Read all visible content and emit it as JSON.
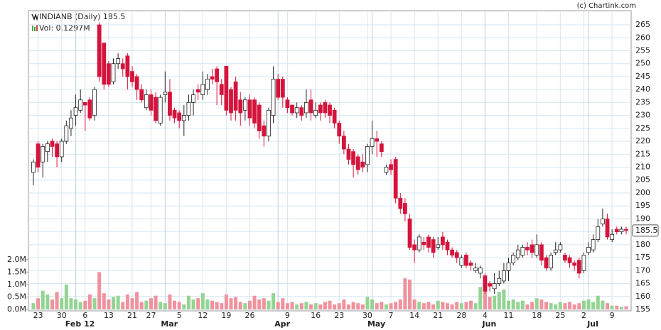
{
  "chart_data": {
    "type": "candlestick",
    "title": "INDIANB (Daily) 185.5",
    "volume_label": "Vol: 0.1297M",
    "watermark": "(c) Chartink.com",
    "up_color": "#ffffff",
    "down_color": "#d4143c",
    "volume_up_color": "#93d493",
    "volume_down_color": "#f0929e",
    "grid": true,
    "categories": [
      null,
      "23",
      null,
      null,
      null,
      null,
      "30",
      null,
      null,
      null,
      null,
      "6",
      null,
      null,
      null,
      null,
      "13",
      null,
      null,
      null,
      null,
      "21",
      null,
      null,
      null,
      "27",
      null,
      null,
      null,
      null,
      null,
      "5",
      null,
      null,
      null,
      null,
      "12",
      null,
      null,
      null,
      null,
      "19",
      null,
      null,
      null,
      null,
      "26",
      null,
      null,
      null,
      null,
      null,
      null,
      null,
      "9",
      null,
      null,
      null,
      null,
      null,
      "16",
      null,
      null,
      null,
      null,
      "23",
      null,
      null,
      null,
      null,
      null,
      "30",
      null,
      null,
      null,
      null,
      "7",
      null,
      null,
      null,
      null,
      "14",
      null,
      null,
      null,
      null,
      "21",
      null,
      null,
      null,
      null,
      "28",
      null,
      null,
      null,
      null,
      "4",
      null,
      null,
      null,
      null,
      "11",
      null,
      null,
      null,
      null,
      null,
      "18",
      null,
      null,
      null,
      null,
      "25",
      null,
      null,
      null,
      null,
      "2",
      null,
      null,
      null,
      null,
      null,
      "9",
      null,
      null,
      null
    ],
    "months": [
      null,
      null,
      null,
      null,
      null,
      null,
      null,
      null,
      null,
      "Feb 12",
      null,
      null,
      null,
      null,
      null,
      null,
      null,
      null,
      null,
      null,
      null,
      null,
      null,
      null,
      null,
      null,
      null,
      null,
      "Mar",
      null,
      null,
      null,
      null,
      null,
      null,
      null,
      null,
      null,
      null,
      null,
      null,
      null,
      null,
      null,
      null,
      null,
      null,
      null,
      null,
      null,
      null,
      null,
      "Apr",
      null,
      null,
      null,
      null,
      null,
      null,
      null,
      null,
      null,
      null,
      null,
      null,
      null,
      null,
      null,
      null,
      null,
      null,
      null,
      "May",
      null,
      null,
      null,
      null,
      null,
      null,
      null,
      null,
      null,
      null,
      null,
      null,
      null,
      null,
      null,
      null,
      null,
      null,
      null,
      null,
      null,
      null,
      null,
      "Jun",
      null,
      null,
      null,
      null,
      null,
      null,
      null,
      null,
      null,
      null,
      null,
      null,
      null,
      null,
      null,
      null,
      null,
      null,
      null,
      null,
      null,
      "Jul",
      null,
      null,
      null,
      null,
      null,
      null,
      null,
      null
    ],
    "open": [
      208,
      219,
      212,
      216,
      220,
      219,
      214,
      220,
      225,
      230,
      232,
      235,
      236,
      230,
      265,
      258,
      250,
      243,
      250,
      250,
      253,
      247,
      245,
      240,
      233,
      238,
      237,
      227,
      238,
      239,
      232,
      231,
      228,
      230,
      235,
      240,
      238,
      240,
      245,
      248,
      242,
      249,
      240,
      243,
      236,
      232,
      236,
      236,
      234,
      226,
      222,
      230,
      244,
      244,
      236,
      234,
      231,
      233,
      231,
      236,
      230,
      234,
      235,
      234,
      232,
      227,
      222,
      217,
      216,
      214,
      212,
      211,
      218,
      221,
      219,
      208,
      211,
      213,
      198,
      196,
      190,
      180,
      178,
      181,
      183,
      182,
      179,
      183,
      181,
      178,
      177,
      172,
      176,
      173,
      170,
      169,
      168,
      165,
      163,
      165,
      166,
      170,
      173,
      175,
      176,
      179,
      180,
      176,
      180,
      175,
      171,
      177,
      178,
      176,
      175,
      173,
      174,
      170,
      177,
      178,
      182,
      188,
      190,
      182,
      186,
      185,
      186
    ],
    "high": [
      213,
      220,
      219,
      220,
      221,
      220,
      221,
      228,
      232,
      238,
      240,
      235,
      237,
      241,
      266,
      258,
      251,
      252,
      254,
      252,
      254,
      249,
      246,
      242,
      240,
      240,
      239,
      238,
      247,
      244,
      233,
      232,
      234,
      238,
      240,
      242,
      247,
      246,
      248,
      249,
      244,
      249,
      241,
      245,
      239,
      237,
      238,
      237,
      235,
      228,
      233,
      249,
      246,
      245,
      237,
      234,
      235,
      234,
      240,
      240,
      235,
      235,
      236,
      235,
      233,
      228,
      224,
      219,
      217,
      215,
      215,
      219,
      228,
      224,
      220,
      211,
      213,
      214,
      200,
      198,
      192,
      182,
      184,
      183,
      184,
      183,
      183,
      185,
      182,
      179,
      178,
      176,
      177,
      174,
      173,
      172,
      169,
      166,
      169,
      170,
      173,
      175,
      177,
      180,
      180,
      181,
      182,
      184,
      181,
      176,
      177,
      181,
      181,
      177,
      176,
      174,
      175,
      177,
      181,
      184,
      190,
      194,
      192,
      186,
      187,
      187,
      187
    ],
    "low": [
      203,
      208,
      206,
      212,
      214,
      210,
      212,
      219,
      222,
      226,
      231,
      224,
      228,
      228,
      243,
      240,
      241,
      242,
      248,
      245,
      240,
      241,
      236,
      235,
      232,
      230,
      227,
      226,
      235,
      228,
      227,
      225,
      222,
      228,
      230,
      236,
      236,
      238,
      242,
      234,
      234,
      230,
      228,
      228,
      226,
      228,
      226,
      225,
      221,
      218,
      220,
      227,
      236,
      233,
      231,
      230,
      229,
      228,
      229,
      228,
      229,
      228,
      229,
      227,
      225,
      219,
      215,
      211,
      206,
      207,
      208,
      208,
      215,
      214,
      214,
      207,
      207,
      196,
      192,
      189,
      178,
      173,
      177,
      178,
      177,
      175,
      178,
      178,
      176,
      175,
      173,
      171,
      171,
      170,
      169,
      167,
      161,
      162,
      161,
      164,
      165,
      166,
      172,
      174,
      175,
      176,
      175,
      175,
      172,
      170,
      170,
      176,
      177,
      173,
      171,
      170,
      167,
      169,
      176,
      177,
      181,
      187,
      182,
      181,
      184,
      184,
      184
    ],
    "close": [
      212,
      210,
      218,
      219,
      218,
      214,
      220,
      226,
      229,
      233,
      236,
      234,
      229,
      240,
      245,
      242,
      242,
      250,
      252,
      248,
      245,
      243,
      240,
      236,
      238,
      232,
      228,
      237,
      239,
      230,
      229,
      228,
      230,
      235,
      238,
      239,
      242,
      244,
      244,
      243,
      238,
      232,
      231,
      232,
      231,
      236,
      229,
      227,
      224,
      222,
      232,
      244,
      237,
      237,
      233,
      231,
      233,
      230,
      235,
      231,
      232,
      231,
      231,
      230,
      227,
      222,
      217,
      213,
      211,
      209,
      210,
      218,
      221,
      220,
      216,
      210,
      209,
      198,
      194,
      192,
      179,
      178,
      183,
      180,
      179,
      177,
      180,
      180,
      178,
      176,
      175,
      175,
      172,
      172,
      171,
      171,
      162,
      164,
      165,
      167,
      170,
      173,
      176,
      178,
      179,
      178,
      177,
      180,
      174,
      171,
      176,
      178,
      180,
      174,
      173,
      172,
      169,
      176,
      179,
      182,
      187,
      190,
      183,
      184,
      185,
      186,
      185.5
    ],
    "volume": [
      0.25,
      0.45,
      0.75,
      0.6,
      0.4,
      0.7,
      0.45,
      1.0,
      0.45,
      0.4,
      0.3,
      0.35,
      0.6,
      0.45,
      1.5,
      0.65,
      0.4,
      0.5,
      0.55,
      0.3,
      0.6,
      0.45,
      0.7,
      0.3,
      0.35,
      0.45,
      0.55,
      0.3,
      0.25,
      0.6,
      0.35,
      0.3,
      0.2,
      0.55,
      0.4,
      0.45,
      0.65,
      0.4,
      0.35,
      0.3,
      0.25,
      0.6,
      0.45,
      0.5,
      0.3,
      0.25,
      0.35,
      0.55,
      0.4,
      0.45,
      0.35,
      0.65,
      0.3,
      0.45,
      0.25,
      0.3,
      0.2,
      0.25,
      0.3,
      0.2,
      0.25,
      0.2,
      0.3,
      0.35,
      0.2,
      0.25,
      0.4,
      0.2,
      0.3,
      0.25,
      0.2,
      0.5,
      0.4,
      0.25,
      0.3,
      0.2,
      0.25,
      0.3,
      0.4,
      1.25,
      1.2,
      0.4,
      0.3,
      0.25,
      0.3,
      0.2,
      0.35,
      0.3,
      0.25,
      0.2,
      0.3,
      0.25,
      0.3,
      0.35,
      0.25,
      0.9,
      0.7,
      0.5,
      0.55,
      0.7,
      0.8,
      0.35,
      0.4,
      0.3,
      0.35,
      0.2,
      0.3,
      0.45,
      0.4,
      0.3,
      0.25,
      0.2,
      0.3,
      0.25,
      0.3,
      0.2,
      0.25,
      0.35,
      0.4,
      0.3,
      0.55,
      0.35,
      0.25,
      0.15,
      0.15,
      0.1,
      0.13
    ],
    "last_price": 185.5,
    "ylim": [
      155,
      270.5
    ],
    "yticks": [
      155,
      160,
      165,
      170,
      175,
      180,
      185,
      190,
      195,
      200,
      205,
      210,
      215,
      220,
      225,
      230,
      235,
      240,
      245,
      250,
      255,
      260,
      265
    ],
    "y2lim": [
      0,
      12
    ],
    "y2ticks": [
      {
        "value": 0,
        "label": "0.0M"
      },
      {
        "value": 0.5,
        "label": "0.5M"
      },
      {
        "value": 1,
        "label": "1.0M"
      },
      {
        "value": 1.5,
        "label": "1.5M"
      },
      {
        "value": 2,
        "label": "2.0M"
      }
    ]
  }
}
